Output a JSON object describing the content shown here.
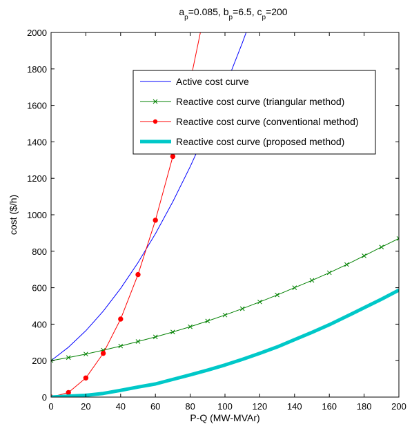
{
  "chart_data": {
    "type": "line",
    "title_parts": [
      {
        "text": "a",
        "sub": false
      },
      {
        "text": "p",
        "sub": true
      },
      {
        "text": "=0.085, b",
        "sub": false
      },
      {
        "text": "p",
        "sub": true
      },
      {
        "text": "=6.5, c",
        "sub": false
      },
      {
        "text": "p",
        "sub": true
      },
      {
        "text": "=200",
        "sub": false
      }
    ],
    "xlabel": "P-Q (MW-MVAr)",
    "ylabel": "cost ($/h)",
    "xlim": [
      0,
      200
    ],
    "ylim": [
      0,
      2000
    ],
    "xticks": [
      0,
      20,
      40,
      60,
      80,
      100,
      120,
      140,
      160,
      180,
      200
    ],
    "yticks": [
      0,
      200,
      400,
      600,
      800,
      1000,
      1200,
      1400,
      1600,
      1800,
      2000
    ],
    "grid": false,
    "legend_position": "upper-right-inside",
    "series": [
      {
        "name": "Active cost curve",
        "color": "#0000ff",
        "line_width": 1,
        "marker": "none",
        "x": [
          0,
          10,
          20,
          30,
          40,
          50,
          60,
          70,
          80,
          90,
          100,
          110,
          120
        ],
        "y": [
          200,
          273.5,
          364,
          471.5,
          596,
          737.5,
          896,
          1071.5,
          1264,
          1473.5,
          1700,
          1943.5,
          2204
        ]
      },
      {
        "name": "Reactive cost curve (triangular method)",
        "color": "#008000",
        "line_width": 1,
        "marker": "x",
        "x": [
          0,
          10,
          20,
          30,
          40,
          50,
          60,
          70,
          80,
          90,
          100,
          110,
          120,
          130,
          140,
          150,
          160,
          170,
          180,
          190,
          200
        ],
        "y": [
          200,
          217,
          236,
          257,
          280,
          305,
          330,
          357,
          386,
          417,
          450,
          485,
          522,
          560,
          600,
          640,
          682,
          727,
          775,
          823,
          870
        ]
      },
      {
        "name": "Reactive cost curve (conventional method)",
        "color": "#ff0000",
        "line_width": 1,
        "marker": "dot",
        "x": [
          0,
          10,
          20,
          30,
          40,
          50,
          60,
          70,
          80,
          90
        ],
        "y": [
          0,
          25,
          105,
          240,
          428,
          672,
          970,
          1320,
          1730,
          2190
        ]
      },
      {
        "name": "Reactive cost curve (proposed method)",
        "color": "#00c8c8",
        "line_width": 5,
        "marker": "none",
        "x": [
          0,
          10,
          20,
          30,
          40,
          50,
          60,
          70,
          80,
          90,
          100,
          110,
          120,
          130,
          140,
          150,
          160,
          170,
          180,
          190,
          200
        ],
        "y": [
          0,
          5,
          10,
          20,
          37,
          55,
          72,
          97,
          122,
          148,
          176,
          207,
          240,
          275,
          315,
          355,
          397,
          443,
          490,
          537,
          587
        ]
      }
    ]
  }
}
